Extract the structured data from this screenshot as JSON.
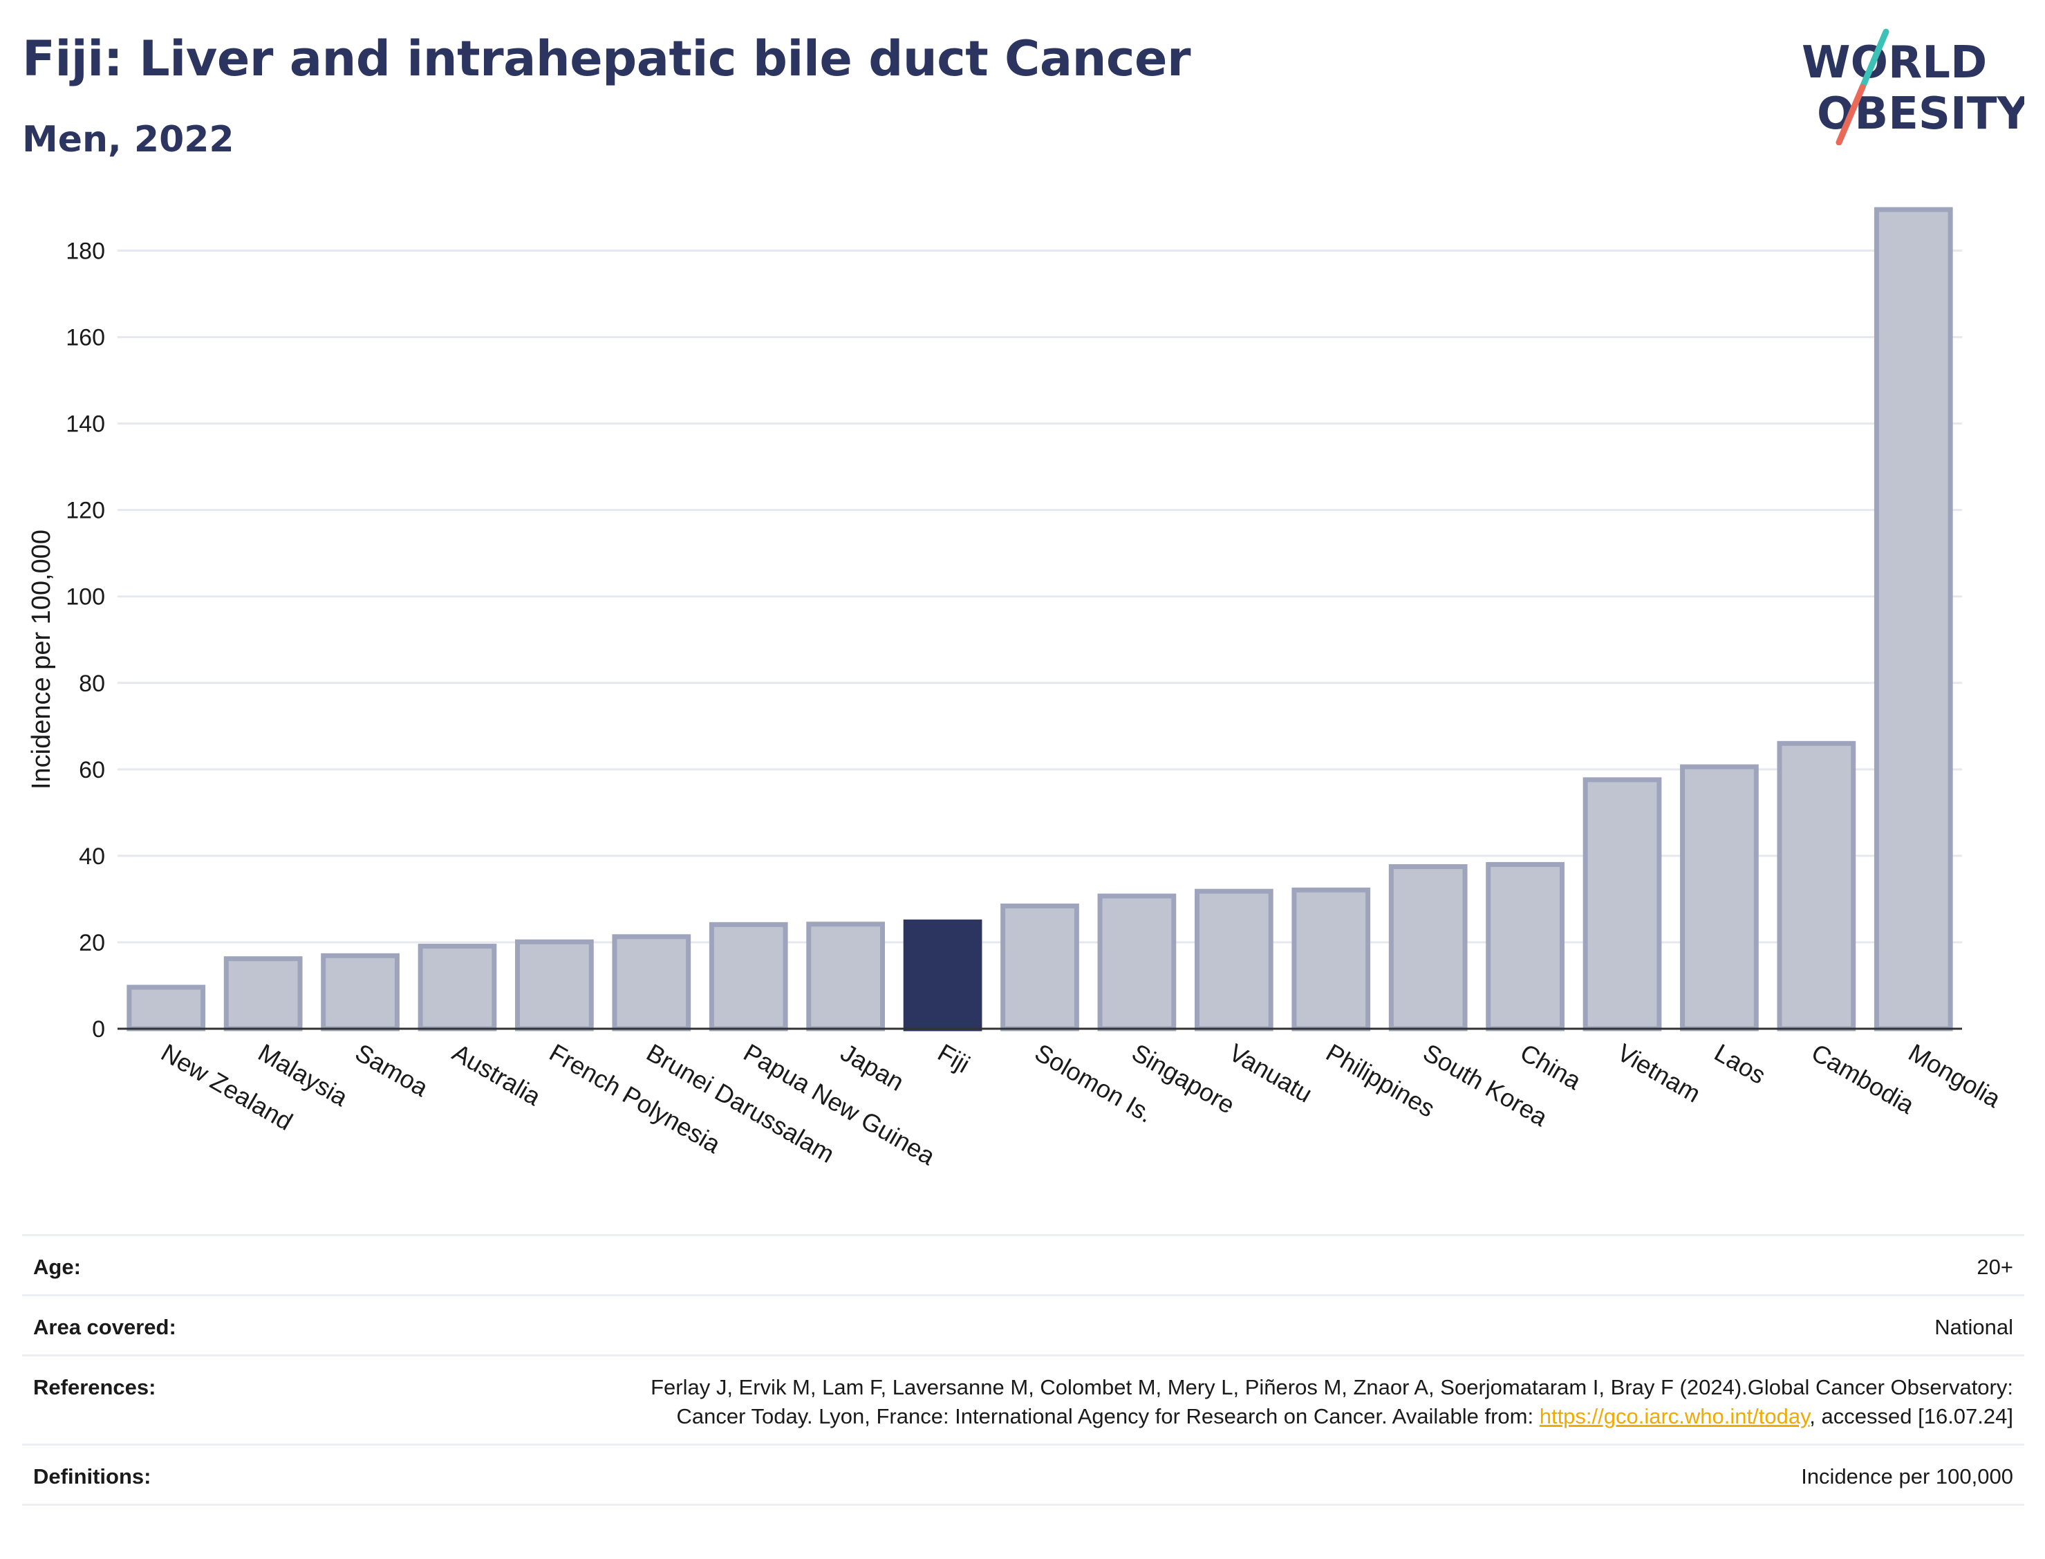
{
  "header": {
    "title": "Fiji: Liver and intrahepatic bile duct Cancer",
    "subtitle": "Men, 2022"
  },
  "logo": {
    "line1": "WORLD",
    "line2": "OBESITY",
    "colors": {
      "text": "#2b3560",
      "slash_top": "#3cc1b7",
      "slash_bottom": "#ea6a5a"
    }
  },
  "chart_data": {
    "type": "bar",
    "title": "Fiji: Liver and intrahepatic bile duct Cancer",
    "subtitle": "Men, 2022",
    "xlabel": "",
    "ylabel": "Incidence per 100,000",
    "ylim": [
      0,
      190
    ],
    "yticks": [
      0,
      20,
      40,
      60,
      80,
      100,
      120,
      140,
      160,
      180
    ],
    "grid": true,
    "highlight": "Fiji",
    "colors": {
      "bar": "#c0c4d0",
      "bar_edge": "#9ea4bb",
      "highlight": "#2b3560",
      "grid": "#e6e8ef"
    },
    "categories": [
      "New Zealand",
      "Malaysia",
      "Samoa",
      "Australia",
      "French Polynesia",
      "Brunei Darussalam",
      "Papua New Guinea",
      "Japan",
      "Fiji",
      "Solomon Is.",
      "Singapore",
      "Vanuatu",
      "Philippines",
      "South Korea",
      "China",
      "Vietnam",
      "Laos",
      "Cambodia",
      "Mongolia"
    ],
    "values": [
      9.6,
      16.2,
      16.9,
      19.1,
      20.1,
      21.3,
      24.1,
      24.2,
      24.7,
      28.4,
      30.7,
      31.8,
      32.1,
      37.5,
      38.0,
      57.6,
      60.6,
      66.0,
      189.5
    ]
  },
  "meta": [
    {
      "key": "Age:",
      "value": "20+"
    },
    {
      "key": "Area covered:",
      "value": "National"
    },
    {
      "key": "References:",
      "value_pre": "Ferlay J, Ervik M, Lam F, Laversanne M, Colombet M, Mery L, Piñeros M, Znaor A, Soerjomataram I, Bray F (2024).Global Cancer Observatory: Cancer Today. Lyon, France: International Agency for Research on Cancer. Available from: ",
      "link": "https://gco.iarc.who.int/today",
      "value_post": ", accessed [16.07.24]"
    },
    {
      "key": "Definitions:",
      "value": "Incidence per 100,000"
    }
  ]
}
